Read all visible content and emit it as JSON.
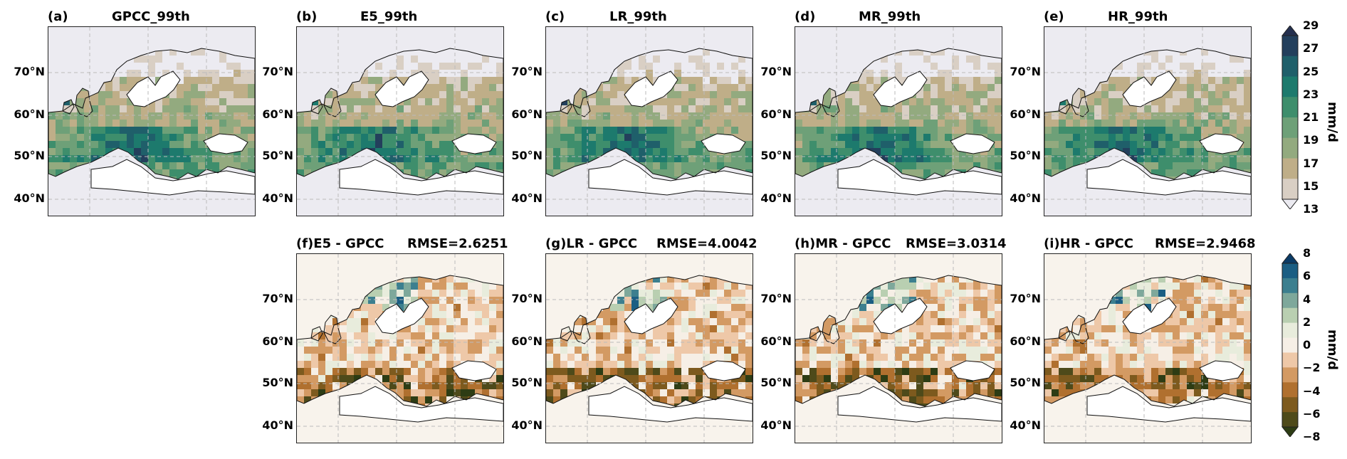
{
  "latitude_ticks": [
    "70°N",
    "60°N",
    "50°N",
    "40°N"
  ],
  "top_row": [
    {
      "label": "(a)",
      "title": "GPCC_99th"
    },
    {
      "label": "(b)",
      "title": "E5_99th"
    },
    {
      "label": "(c)",
      "title": "LR_99th"
    },
    {
      "label": "(d)",
      "title": "MR_99th"
    },
    {
      "label": "(e)",
      "title": "HR_99th"
    }
  ],
  "bottom_row": [
    {
      "label": "(f)",
      "title": "E5 - GPCC",
      "rmse": "RMSE=2.6251"
    },
    {
      "label": "(g)",
      "title": "LR - GPCC",
      "rmse": "RMSE=4.0042"
    },
    {
      "label": "(h)",
      "title": "MR - GPCC",
      "rmse": "RMSE=3.0314"
    },
    {
      "label": "(i)",
      "title": "HR - GPCC",
      "rmse": "RMSE=2.9468"
    }
  ],
  "colorbar_top": {
    "unit": "mm/d",
    "ticks": [
      "29",
      "27",
      "25",
      "23",
      "21",
      "19",
      "17",
      "15",
      "13"
    ],
    "colors": [
      "#25304f",
      "#233f5c",
      "#1f5f6a",
      "#1d7a6d",
      "#3e8e6c",
      "#6ea078",
      "#93aa7f",
      "#bfae88",
      "#d9cfc4",
      "#ecebf1"
    ]
  },
  "colorbar_bottom": {
    "unit": "mm/d",
    "ticks": [
      "8",
      "6",
      "4",
      "2",
      "0",
      "−2",
      "−4",
      "−6",
      "−8"
    ],
    "colors": [
      "#0b3b66",
      "#1b5e83",
      "#3c7f8f",
      "#7ea89b",
      "#b9cfb1",
      "#e8ecdc",
      "#f6efe6",
      "#eec8a8",
      "#d39a63",
      "#b0702f",
      "#7d5a1e",
      "#4e4a1a",
      "#2d3c14"
    ]
  }
}
